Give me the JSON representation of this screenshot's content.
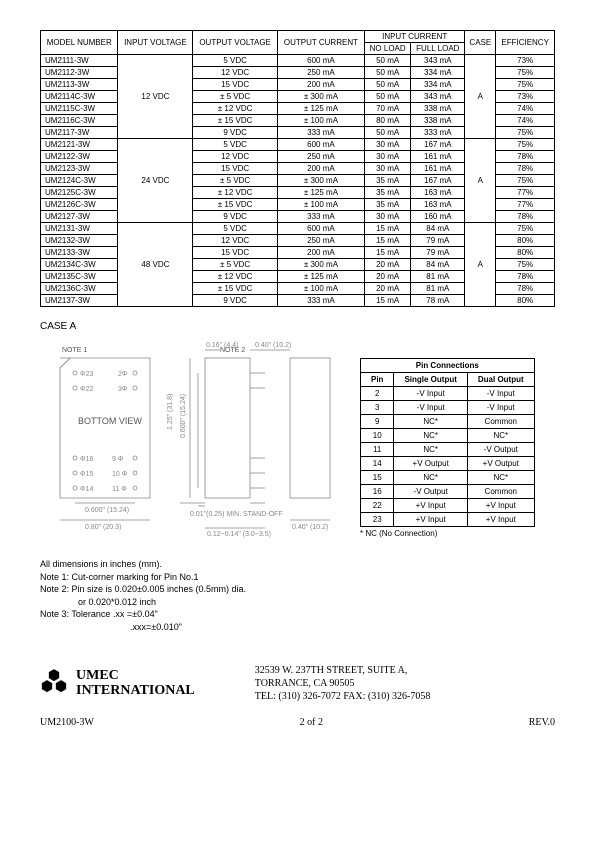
{
  "specTable": {
    "header": {
      "model": "MODEL NUMBER",
      "inputV": "INPUT VOLTAGE",
      "outputV": "OUTPUT VOLTAGE",
      "outputC": "OUTPUT CURRENT",
      "inputCurrent": "INPUT CURRENT",
      "noLoad": "NO LOAD",
      "fullLoad": "FULL LOAD",
      "case": "CASE",
      "eff": "EFFICIENCY"
    },
    "groups": [
      {
        "inputV": "12 VDC",
        "case": "A",
        "rows": [
          {
            "model": "UM2111-3W",
            "ov": "5 VDC",
            "oc": "600 mA",
            "nl": "50 mA",
            "fl": "343 mA",
            "eff": "73%"
          },
          {
            "model": "UM2112-3W",
            "ov": "12 VDC",
            "oc": "250 mA",
            "nl": "50 mA",
            "fl": "334 mA",
            "eff": "75%"
          },
          {
            "model": "UM2113-3W",
            "ov": "15 VDC",
            "oc": "200 mA",
            "nl": "50 mA",
            "fl": "334 mA",
            "eff": "75%"
          },
          {
            "model": "UM2114C-3W",
            "ov": "± 5 VDC",
            "oc": "± 300 mA",
            "nl": "50 mA",
            "fl": "343 mA",
            "eff": "73%"
          },
          {
            "model": "UM2115C-3W",
            "ov": "± 12 VDC",
            "oc": "± 125 mA",
            "nl": "70 mA",
            "fl": "338 mA",
            "eff": "74%"
          },
          {
            "model": "UM2116C-3W",
            "ov": "± 15 VDC",
            "oc": "± 100 mA",
            "nl": "80 mA",
            "fl": "338 mA",
            "eff": "74%"
          },
          {
            "model": "UM2117-3W",
            "ov": "9 VDC",
            "oc": "333 mA",
            "nl": "50 mA",
            "fl": "333 mA",
            "eff": "75%"
          }
        ]
      },
      {
        "inputV": "24 VDC",
        "case": "A",
        "rows": [
          {
            "model": "UM2121-3W",
            "ov": "5 VDC",
            "oc": "600 mA",
            "nl": "30 mA",
            "fl": "167 mA",
            "eff": "75%"
          },
          {
            "model": "UM2122-3W",
            "ov": "12 VDC",
            "oc": "250 mA",
            "nl": "30 mA",
            "fl": "161 mA",
            "eff": "78%"
          },
          {
            "model": "UM2123-3W",
            "ov": "15 VDC",
            "oc": "200 mA",
            "nl": "30 mA",
            "fl": "161 mA",
            "eff": "78%"
          },
          {
            "model": "UM2124C-3W",
            "ov": "± 5 VDC",
            "oc": "± 300 mA",
            "nl": "35 mA",
            "fl": "167 mA",
            "eff": "75%"
          },
          {
            "model": "UM2125C-3W",
            "ov": "± 12 VDC",
            "oc": "± 125 mA",
            "nl": "35 mA",
            "fl": "163 mA",
            "eff": "77%"
          },
          {
            "model": "UM2126C-3W",
            "ov": "± 15 VDC",
            "oc": "± 100 mA",
            "nl": "35 mA",
            "fl": "163 mA",
            "eff": "77%"
          },
          {
            "model": "UM2127-3W",
            "ov": "9 VDC",
            "oc": "333 mA",
            "nl": "30 mA",
            "fl": "160 mA",
            "eff": "78%"
          }
        ]
      },
      {
        "inputV": "48 VDC",
        "case": "A",
        "rows": [
          {
            "model": "UM2131-3W",
            "ov": "5 VDC",
            "oc": "600 mA",
            "nl": "15 mA",
            "fl": "84 mA",
            "eff": "75%"
          },
          {
            "model": "UM2132-3W",
            "ov": "12 VDC",
            "oc": "250 mA",
            "nl": "15 mA",
            "fl": "79 mA",
            "eff": "80%"
          },
          {
            "model": "UM2133-3W",
            "ov": "15 VDC",
            "oc": "200 mA",
            "nl": "15 mA",
            "fl": "79 mA",
            "eff": "80%"
          },
          {
            "model": "UM2134C-3W",
            "ov": "± 5 VDC",
            "oc": "± 300 mA",
            "nl": "20 mA",
            "fl": "84 mA",
            "eff": "75%"
          },
          {
            "model": "UM2135C-3W",
            "ov": "± 12 VDC",
            "oc": "± 125 mA",
            "nl": "20 mA",
            "fl": "81 mA",
            "eff": "78%"
          },
          {
            "model": "UM2136C-3W",
            "ov": "± 15 VDC",
            "oc": "± 100 mA",
            "nl": "20 mA",
            "fl": "81 mA",
            "eff": "78%"
          },
          {
            "model": "UM2137-3W",
            "ov": "9 VDC",
            "oc": "333 mA",
            "nl": "15 mA",
            "fl": "78 mA",
            "eff": "80%"
          }
        ]
      }
    ]
  },
  "caseLabel": "CASE A",
  "diagram": {
    "note1": "NOTE 1",
    "note2": "NOTE 2",
    "bottomView": "BOTTOM VIEW",
    "pins": [
      "Φ23",
      "Φ22",
      "2Φ",
      "3Φ",
      "Φ16",
      "Φ15",
      "Φ14",
      "9 Φ",
      "10 Φ",
      "11 Φ"
    ],
    "dims": {
      "topInner": "0.16\" (4.4)",
      "topRight": "0.40\" (10.2)",
      "sideHeight": "1.25\" (31.8)",
      "sideInner": "0.600\" (15.24)",
      "bottomInner": "0.600\" (15.24)",
      "bottomOuter": "0.80\" (20.3)",
      "standoff": "0.01\"(0.25) MIN. STAND-OFF",
      "bottomMid": "0.12~0.14\" (3.0~3.5)",
      "bottomRight": "0.40\" (10.2)"
    }
  },
  "pinTable": {
    "title": "Pin Connections",
    "headers": {
      "pin": "Pin",
      "single": "Single Output",
      "dual": "Dual Output"
    },
    "rows": [
      {
        "pin": "2",
        "single": "-V Input",
        "dual": "-V Input"
      },
      {
        "pin": "3",
        "single": "-V Input",
        "dual": "-V Input"
      },
      {
        "pin": "9",
        "single": "NC*",
        "dual": "Common"
      },
      {
        "pin": "10",
        "single": "NC*",
        "dual": "NC*"
      },
      {
        "pin": "11",
        "single": "NC*",
        "dual": "-V Output"
      },
      {
        "pin": "14",
        "single": "+V Output",
        "dual": "+V Output"
      },
      {
        "pin": "15",
        "single": "NC*",
        "dual": "NC*"
      },
      {
        "pin": "16",
        "single": "-V Output",
        "dual": "Common"
      },
      {
        "pin": "22",
        "single": "+V Input",
        "dual": "+V Input"
      },
      {
        "pin": "23",
        "single": "+V Input",
        "dual": "+V Input"
      }
    ],
    "note": "* NC (No Connection)"
  },
  "notes": {
    "dims": "All dimensions in inches (mm).",
    "n1": "Note 1: Cut-corner marking for Pin No.1",
    "n2a": "Note 2: Pin size is 0.020±0.005 inches (0.5mm) dia.",
    "n2b": "or 0.020*0.012 inch",
    "n3a": "Note 3: Tolerance .xx =±0.04\"",
    "n3b": ".xxx=±0.010\""
  },
  "company": {
    "line1": "UMEC",
    "line2": "INTERNATIONAL"
  },
  "address": {
    "line1": "32539 W. 237TH STREET, SUITE A,",
    "line2": "TORRANCE, CA 90505",
    "line3": "TEL: (310) 326-7072   FAX: (310) 326-7058"
  },
  "footer": {
    "partNo": "UM2100-3W",
    "page": "2  of  2",
    "rev": "REV.0"
  }
}
